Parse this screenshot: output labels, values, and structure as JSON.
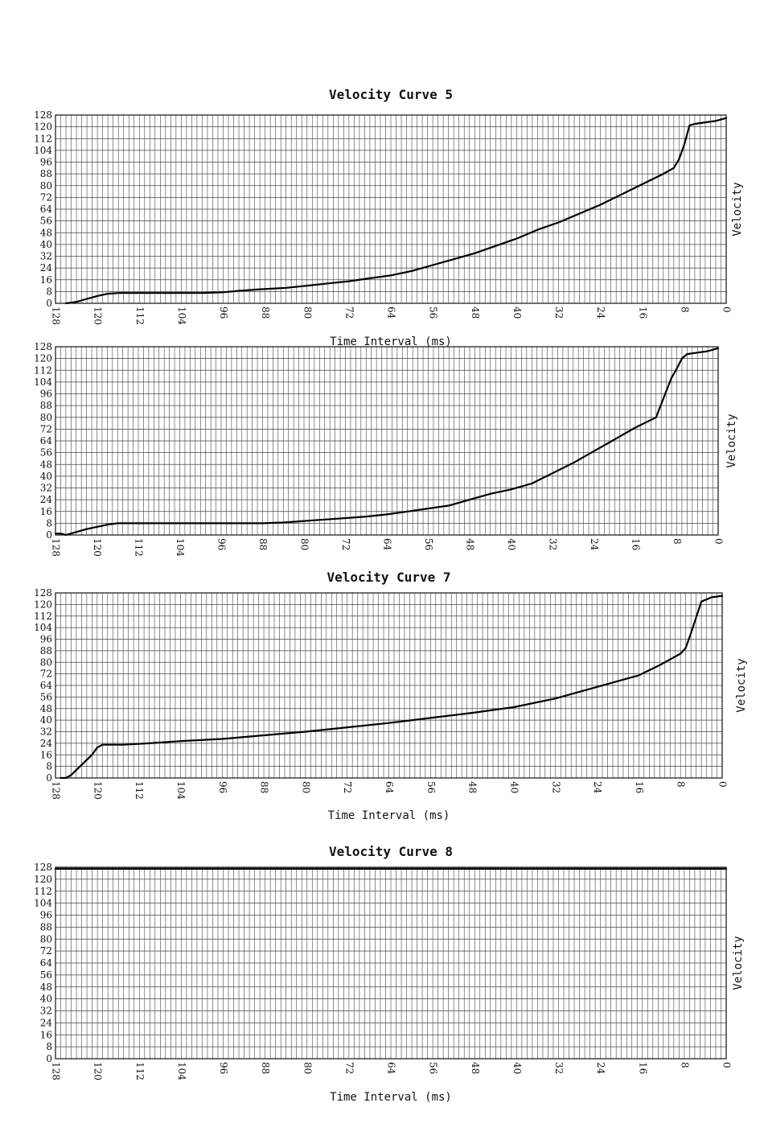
{
  "chart_data": [
    {
      "type": "line",
      "title": "Velocity Curve 5",
      "xlabel": "Time Interval (ms)",
      "ylabel": "Velocity",
      "xlim": [
        128,
        0
      ],
      "ylim": [
        0,
        128
      ],
      "x_reversed": true,
      "grid": true,
      "legend": "none",
      "xticks": [
        "128",
        "120",
        "112",
        "104",
        "96",
        "88",
        "80",
        "72",
        "64",
        "56",
        "48",
        "40",
        "32",
        "24",
        "16",
        "8",
        "0"
      ],
      "yticks": [
        "0",
        "8",
        "16",
        "24",
        "32",
        "40",
        "48",
        "56",
        "64",
        "72",
        "80",
        "88",
        "96",
        "104",
        "112",
        "120",
        "128"
      ],
      "series": [
        {
          "x": [
            126,
            124,
            122,
            120,
            118,
            116,
            108,
            100,
            96,
            93,
            89,
            84,
            80,
            76,
            72,
            68,
            64,
            60,
            56,
            52,
            48,
            44,
            40,
            36,
            32,
            28,
            24,
            20,
            16,
            12,
            10,
            9,
            8,
            7,
            6,
            4,
            2,
            0
          ],
          "y": [
            0,
            1,
            3,
            5,
            6.5,
            7,
            7,
            7,
            7.5,
            8.5,
            9.5,
            10.5,
            12,
            13.5,
            15,
            17,
            19,
            22,
            26,
            30,
            34,
            39,
            44,
            50,
            55,
            61,
            67,
            74,
            81,
            88,
            92,
            98,
            108,
            121,
            122,
            123,
            124,
            126
          ]
        }
      ]
    },
    {
      "type": "line",
      "title": "",
      "xlabel": "",
      "ylabel": "Velocity",
      "xlim": [
        128,
        0
      ],
      "ylim": [
        0,
        128
      ],
      "x_reversed": true,
      "grid": true,
      "legend": "none",
      "xticks": [
        "128",
        "120",
        "112",
        "104",
        "96",
        "88",
        "80",
        "72",
        "64",
        "56",
        "48",
        "40",
        "32",
        "24",
        "16",
        "8",
        "0"
      ],
      "yticks": [
        "0",
        "8",
        "16",
        "24",
        "32",
        "40",
        "48",
        "56",
        "64",
        "72",
        "80",
        "88",
        "96",
        "104",
        "112",
        "120",
        "128"
      ],
      "series": [
        {
          "x": [
            128,
            127,
            126,
            124,
            122,
            120,
            118,
            116,
            100,
            88,
            84,
            80,
            76,
            72,
            68,
            64,
            60,
            56,
            52,
            48,
            44,
            40,
            36,
            32,
            28,
            24,
            20,
            16,
            12,
            10,
            9,
            8,
            7,
            6,
            4,
            2,
            0
          ],
          "y": [
            1,
            1,
            0,
            2,
            4,
            5.5,
            7,
            8,
            8,
            8,
            8.5,
            9.5,
            10.5,
            11.5,
            12.5,
            14,
            16,
            18,
            20,
            24,
            28,
            31,
            35,
            42,
            49,
            57,
            65,
            73,
            80,
            98,
            107,
            113,
            120,
            123,
            124,
            125,
            127
          ]
        }
      ]
    },
    {
      "type": "line",
      "title": "Velocity Curve 7",
      "xlabel": "Time Interval (ms)",
      "ylabel": "Velocity",
      "xlim": [
        128,
        0
      ],
      "ylim": [
        0,
        128
      ],
      "x_reversed": true,
      "grid": true,
      "legend": "none",
      "xticks": [
        "128",
        "120",
        "112",
        "104",
        "96",
        "88",
        "80",
        "72",
        "64",
        "56",
        "48",
        "40",
        "32",
        "24",
        "16",
        "8",
        "0"
      ],
      "yticks": [
        "0",
        "8",
        "16",
        "24",
        "32",
        "40",
        "48",
        "56",
        "64",
        "72",
        "80",
        "88",
        "96",
        "104",
        "112",
        "120",
        "128"
      ],
      "series": [
        {
          "x": [
            127,
            126,
            125,
            123,
            121,
            120,
            119,
            115,
            110,
            104,
            96,
            88,
            80,
            72,
            64,
            56,
            48,
            40,
            32,
            24,
            16,
            12,
            8,
            7,
            6,
            4,
            2,
            0
          ],
          "y": [
            0,
            0,
            2,
            9,
            16,
            21,
            23,
            23,
            24,
            25.5,
            27,
            29.5,
            32,
            35,
            38,
            41.5,
            45,
            49,
            55,
            63,
            71,
            78,
            86,
            90,
            100,
            122,
            125,
            126
          ]
        }
      ]
    },
    {
      "type": "line",
      "title": "Velocity Curve 8",
      "xlabel": "Time Interval (ms)",
      "ylabel": "Velocity",
      "xlim": [
        128,
        0
      ],
      "ylim": [
        0,
        128
      ],
      "x_reversed": true,
      "grid": true,
      "legend": "none",
      "xticks": [
        "128",
        "120",
        "112",
        "104",
        "96",
        "88",
        "80",
        "72",
        "64",
        "56",
        "48",
        "40",
        "32",
        "24",
        "16",
        "8",
        "0"
      ],
      "yticks": [
        "0",
        "8",
        "16",
        "24",
        "32",
        "40",
        "48",
        "56",
        "64",
        "72",
        "80",
        "88",
        "96",
        "104",
        "112",
        "120",
        "128"
      ],
      "series": [
        {
          "x": [
            128,
            0
          ],
          "y": [
            127,
            127
          ]
        }
      ]
    }
  ]
}
